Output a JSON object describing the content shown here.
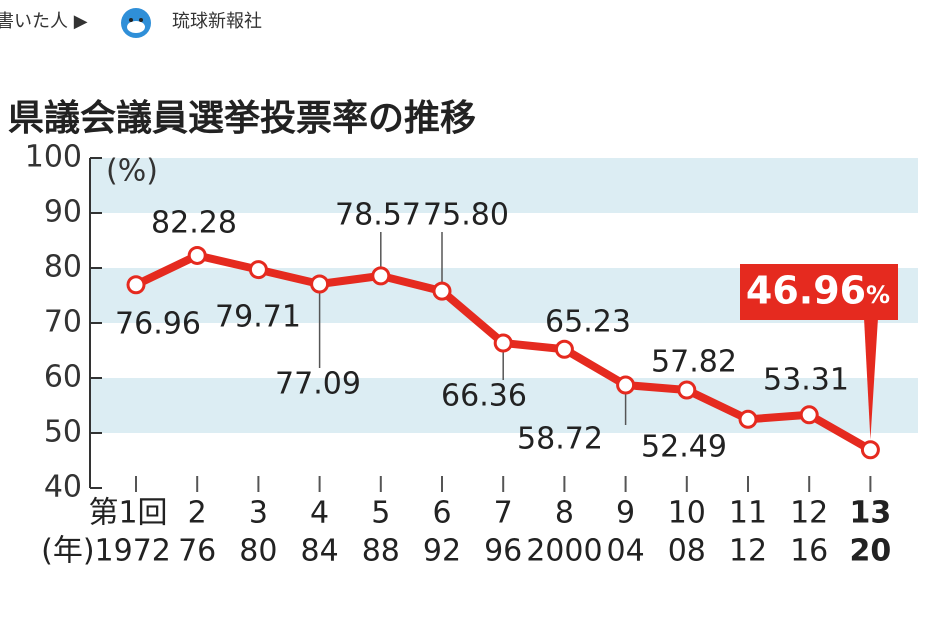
{
  "header": {
    "lead": "書いた人 ▶",
    "author": "琉球新報社"
  },
  "chart_data": {
    "type": "line",
    "title": "県議会議員選挙投票率の推移",
    "y_unit": "(%)",
    "categories": [
      "第1回",
      "2",
      "3",
      "4",
      "5",
      "6",
      "7",
      "8",
      "9",
      "10",
      "11",
      "12",
      "13"
    ],
    "years": [
      "(年)1972",
      "76",
      "80",
      "84",
      "88",
      "92",
      "96",
      "2000",
      "04",
      "08",
      "12",
      "16",
      "20"
    ],
    "series": [
      {
        "name": "投票率",
        "color": "#e52a1f",
        "values": [
          76.96,
          82.28,
          79.71,
          77.09,
          78.57,
          75.8,
          66.36,
          65.23,
          58.72,
          57.82,
          52.49,
          53.31,
          46.96
        ],
        "value_labels": [
          "76.96",
          "82.28",
          "79.71",
          "77.09",
          "78.57",
          "75.80",
          "66.36",
          "65.23",
          "58.72",
          "57.82",
          "52.49",
          "53.31",
          "46.96"
        ]
      }
    ],
    "highlight_unit": "%",
    "ylim": [
      40,
      100
    ],
    "yticks": [
      40,
      50,
      60,
      70,
      80,
      90,
      100
    ],
    "bands": [
      [
        90,
        100
      ],
      [
        70,
        80
      ],
      [
        50,
        60
      ]
    ],
    "band_color": "#dcedf3"
  }
}
